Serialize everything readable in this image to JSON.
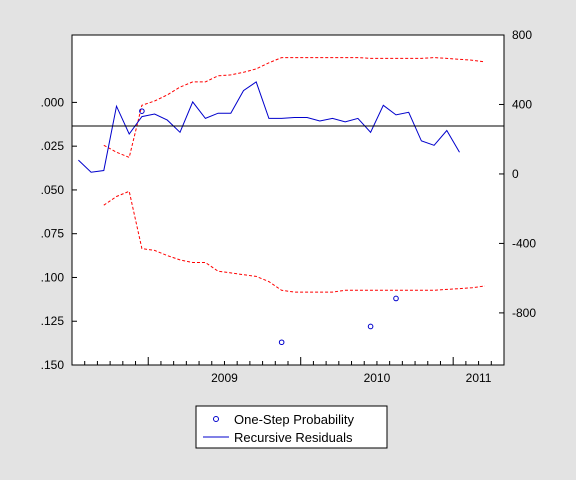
{
  "chart_data": {
    "type": "line",
    "title": "",
    "xlabel": "",
    "ylabel": "",
    "grid": false,
    "legend_position": "bottom-center",
    "x_tick_labels": [
      "2009",
      "2010",
      "2011"
    ],
    "right_axis": {
      "ylim": [
        -1100,
        800
      ],
      "tick_values": [
        800,
        400,
        0,
        -400,
        -800
      ],
      "tick_labels": [
        "800",
        "400",
        "0",
        "-400",
        "-800"
      ]
    },
    "left_axis": {
      "ylim": [
        -0.0385,
        0.15
      ],
      "inverted": true,
      "tick_values": [
        0.0,
        0.025,
        0.05,
        0.075,
        0.1,
        0.125,
        0.15
      ],
      "tick_labels": [
        ".000",
        ".025",
        ".050",
        ".075",
        ".100",
        ".125",
        ".150"
      ]
    },
    "x_dates": [
      "2008-07",
      "2008-08",
      "2008-09",
      "2008-10",
      "2008-11",
      "2008-12",
      "2009-01",
      "2009-02",
      "2009-03",
      "2009-04",
      "2009-05",
      "2009-06",
      "2009-07",
      "2009-08",
      "2009-09",
      "2009-10",
      "2009-11",
      "2009-12",
      "2010-01",
      "2010-02",
      "2010-03",
      "2010-04",
      "2010-05",
      "2010-06",
      "2010-07",
      "2010-08",
      "2010-09",
      "2010-10",
      "2010-11",
      "2010-12",
      "2011-01",
      "2011-02",
      "2011-03",
      "2011-04"
    ],
    "series": [
      {
        "name": "Recursive Residuals",
        "axis": "right",
        "color": "#0000cc",
        "style": "solid",
        "start_index": 0,
        "values": [
          80,
          10,
          20,
          390,
          230,
          330,
          345,
          310,
          240,
          415,
          320,
          350,
          350,
          480,
          530,
          320,
          320,
          325,
          325,
          305,
          320,
          300,
          320,
          240,
          395,
          340,
          355,
          190,
          165,
          250,
          125
        ]
      },
      {
        "name": "",
        "axis": "right",
        "color": "#ff0000",
        "style": "dashed",
        "start_index": 2,
        "values": [
          165,
          125,
          95,
          395,
          420,
          455,
          500,
          530,
          530,
          565,
          570,
          585,
          605,
          640,
          670,
          670,
          670,
          670,
          670,
          670,
          670,
          665,
          665,
          665,
          665,
          665,
          670,
          665,
          660,
          655,
          645
        ]
      },
      {
        "name": "",
        "axis": "right",
        "color": "#ff0000",
        "style": "dashed",
        "start_index": 2,
        "values": [
          -180,
          -130,
          -100,
          -430,
          -440,
          -470,
          -495,
          -510,
          -510,
          -560,
          -570,
          -580,
          -590,
          -620,
          -670,
          -680,
          -680,
          -680,
          -680,
          -670,
          -670,
          -670,
          -670,
          -670,
          -670,
          -670,
          -670,
          -665,
          -660,
          -655,
          -645
        ]
      },
      {
        "name": "One-Step Probability",
        "axis": "left",
        "color": "#0000cc",
        "style": "marker",
        "points": [
          {
            "x": 5,
            "y": 0.005
          },
          {
            "x": 16,
            "y": 0.137
          },
          {
            "x": 23,
            "y": 0.128
          },
          {
            "x": 25,
            "y": 0.112
          }
        ]
      }
    ],
    "legend": [
      {
        "label": "One-Step Probability",
        "kind": "marker"
      },
      {
        "label": "Recursive Residuals",
        "kind": "line"
      }
    ]
  }
}
